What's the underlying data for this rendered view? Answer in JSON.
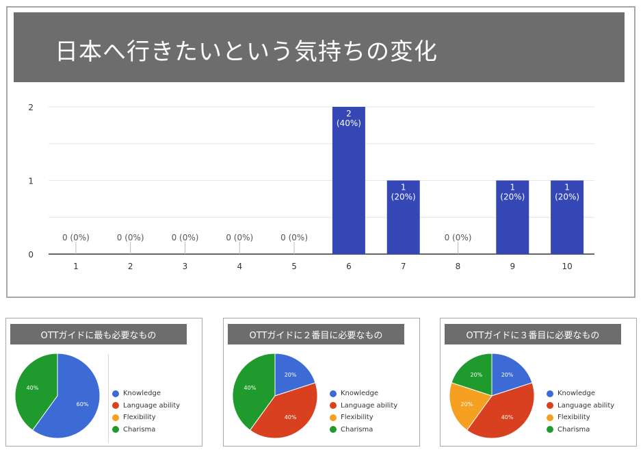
{
  "title": "日本へ行きたいという気持ちの変化",
  "colors": {
    "bar": "#3547b5",
    "Knowledge": "#3d6bd6",
    "Language ability": "#d8401f",
    "Flexibility": "#f6a021",
    "Charisma": "#1f9a2c"
  },
  "chart_data": [
    {
      "type": "bar",
      "categories": [
        "1",
        "2",
        "3",
        "4",
        "5",
        "6",
        "7",
        "8",
        "9",
        "10"
      ],
      "values": [
        0,
        0,
        0,
        0,
        0,
        2,
        1,
        0,
        1,
        1
      ],
      "data_labels": [
        "0 (0%)",
        "0 (0%)",
        "0 (0%)",
        "0 (0%)",
        "0 (0%)",
        "2\n(40%)",
        "1\n(20%)",
        "0 (0%)",
        "1\n(20%)",
        "1\n(20%)"
      ],
      "yticks": [
        0,
        1,
        2
      ],
      "ylim": [
        0,
        2
      ],
      "title": "日本へ行きたいという気持ちの変化",
      "grid": true
    },
    {
      "type": "pie",
      "title": "OTTガイドに最も必要なもの",
      "labels": [
        "Knowledge",
        "Language ability",
        "Flexibility",
        "Charisma"
      ],
      "values": [
        60,
        0,
        0,
        40
      ],
      "slice_labels": [
        "60%",
        "",
        "",
        "40%"
      ]
    },
    {
      "type": "pie",
      "title": "OTTガイドに２番目に必要なもの",
      "labels": [
        "Knowledge",
        "Language ability",
        "Flexibility",
        "Charisma"
      ],
      "values": [
        20,
        40,
        0,
        40
      ],
      "slice_labels": [
        "20%",
        "40%",
        "",
        "40%"
      ]
    },
    {
      "type": "pie",
      "title": "OTTガイドに３番目に必要なもの",
      "labels": [
        "Knowledge",
        "Language ability",
        "Flexibility",
        "Charisma"
      ],
      "values": [
        20,
        40,
        20,
        20
      ],
      "slice_labels": [
        "20%",
        "40%",
        "20%",
        "20%"
      ]
    }
  ]
}
